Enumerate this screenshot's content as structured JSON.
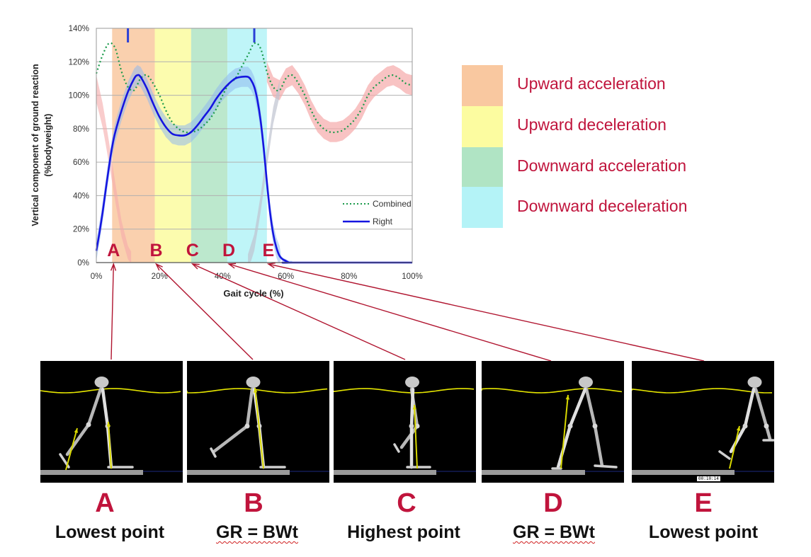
{
  "chart_data": {
    "type": "line",
    "title": "",
    "xlabel": "Gait cycle (%)",
    "ylabel": "Vertical component of ground reaction",
    "ylabel2": "(%bodyweight)",
    "xlim": [
      0,
      100
    ],
    "ylim": [
      0,
      140
    ],
    "xticks": [
      "0%",
      "20%",
      "40%",
      "60%",
      "80%",
      "100%"
    ],
    "yticks": [
      "0%",
      "20%",
      "40%",
      "60%",
      "80%",
      "100%",
      "120%",
      "140%"
    ],
    "grid": "horizontal",
    "legend_position": "lower-right",
    "series": [
      {
        "name": "Combined",
        "style": "dotted",
        "color": "#1a9a4a",
        "x": [
          0,
          2,
          4,
          6,
          8,
          10,
          12,
          14,
          16,
          18,
          20,
          22,
          24,
          26,
          28,
          30,
          32,
          34,
          36,
          38,
          40,
          42,
          44,
          46,
          48,
          50,
          52,
          54,
          56,
          58,
          60,
          62,
          64,
          66,
          68,
          70,
          72,
          74,
          76,
          78,
          80,
          82,
          84,
          86,
          88,
          90,
          92,
          94,
          96,
          98,
          100
        ],
        "y": [
          113,
          124,
          131,
          128,
          114,
          105,
          103,
          110,
          112,
          107,
          100,
          91,
          84,
          80,
          78,
          78,
          79,
          82,
          86,
          92,
          100,
          107,
          110,
          117,
          124,
          131,
          128,
          114,
          105,
          103,
          110,
          112,
          107,
          100,
          91,
          84,
          80,
          78,
          78,
          79,
          82,
          86,
          92,
          100,
          105,
          108,
          111,
          112,
          110,
          107,
          106
        ]
      },
      {
        "name": "Right",
        "style": "solid",
        "color": "#1515e0",
        "x": [
          0,
          1,
          2,
          3,
          4,
          5,
          6,
          8,
          10,
          12,
          13,
          14,
          16,
          18,
          20,
          22,
          24,
          26,
          28,
          30,
          32,
          34,
          36,
          38,
          40,
          42,
          44,
          46,
          48,
          49,
          50,
          51,
          52,
          53,
          54,
          55,
          56,
          57,
          58,
          59,
          60,
          61,
          62,
          100
        ],
        "y": [
          7,
          18,
          30,
          44,
          57,
          69,
          78,
          91,
          102,
          110,
          112,
          111,
          104,
          95,
          87,
          81,
          77,
          76,
          76,
          78,
          82,
          87,
          92,
          98,
          103,
          107,
          110,
          111,
          111,
          109,
          105,
          97,
          85,
          68,
          48,
          30,
          17,
          9,
          4,
          2,
          1,
          0,
          0,
          0
        ]
      }
    ],
    "phases": [
      {
        "label": "Upward acceleration",
        "from": 5,
        "to": 18.5,
        "color": "#f9c8a0"
      },
      {
        "label": "Upward deceleration",
        "from": 18.5,
        "to": 30,
        "color": "#fcfca0"
      },
      {
        "label": "Downward acceleration",
        "from": 30,
        "to": 41.5,
        "color": "#b0e4c4"
      },
      {
        "label": "Downward deceleration",
        "from": 41.5,
        "to": 54,
        "color": "#b4f3f7"
      }
    ],
    "point_markers": [
      {
        "label": "A",
        "x": 5
      },
      {
        "label": "B",
        "x": 18.5
      },
      {
        "label": "C",
        "x": 30
      },
      {
        "label": "D",
        "x": 41.5
      },
      {
        "label": "E",
        "x": 54
      }
    ],
    "event_ticks": [
      10,
      50
    ]
  },
  "legend": {
    "items": [
      {
        "label": "Upward acceleration",
        "color": "#f9c8a0"
      },
      {
        "label": "Upward deceleration",
        "color": "#fcfca0"
      },
      {
        "label": "Downward acceleration",
        "color": "#b0e4c4"
      },
      {
        "label": "Downward deceleration",
        "color": "#b4f3f7"
      }
    ]
  },
  "frames": [
    {
      "letter": "A",
      "caption": "Lowest point"
    },
    {
      "letter": "B",
      "caption": "GR = BWt"
    },
    {
      "letter": "C",
      "caption": "Highest point"
    },
    {
      "letter": "D",
      "caption": "GR = BWt"
    },
    {
      "letter": "E",
      "caption": "Lowest point",
      "timestamp": "00:10:14"
    }
  ],
  "colors": {
    "accent_red": "#c0143c",
    "right_line": "#1515e0",
    "combined_line": "#1a9a4a",
    "band_pink": "#f5aaaa",
    "band_blue": "#8fb8ee",
    "body_marker_line": "#e6e600"
  }
}
